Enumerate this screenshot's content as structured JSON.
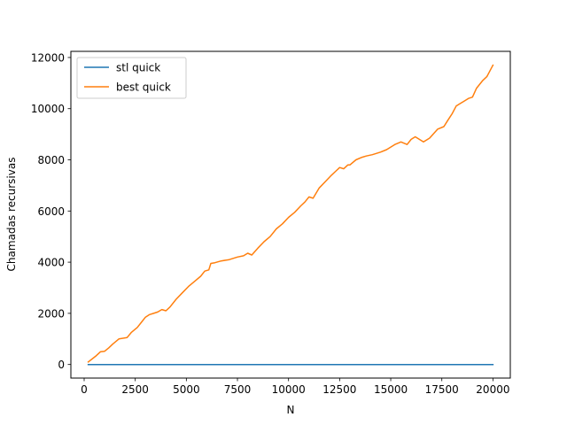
{
  "chart_data": {
    "type": "line",
    "title": "",
    "xlabel": "N",
    "ylabel": "Chamadas recursivas",
    "xlim": [
      -650,
      20850
    ],
    "ylim": [
      -530,
      12240
    ],
    "xticks": [
      {
        "value": 0,
        "label": "0"
      },
      {
        "value": 2500,
        "label": "2500"
      },
      {
        "value": 5000,
        "label": "5000"
      },
      {
        "value": 7500,
        "label": "7500"
      },
      {
        "value": 10000,
        "label": "10000"
      },
      {
        "value": 12500,
        "label": "12500"
      },
      {
        "value": 15000,
        "label": "15000"
      },
      {
        "value": 17500,
        "label": "17500"
      },
      {
        "value": 20000,
        "label": "20000"
      }
    ],
    "yticks": [
      {
        "value": 0,
        "label": "0"
      },
      {
        "value": 2000,
        "label": "2000"
      },
      {
        "value": 4000,
        "label": "4000"
      },
      {
        "value": 6000,
        "label": "6000"
      },
      {
        "value": 8000,
        "label": "8000"
      },
      {
        "value": 10000,
        "label": "10000"
      },
      {
        "value": 12000,
        "label": "12000"
      }
    ],
    "grid": false,
    "legend": "top-left",
    "series": [
      {
        "name": "stl quick",
        "color": "#1f77b4",
        "x": [
          200,
          20000
        ],
        "y": [
          0,
          0
        ]
      },
      {
        "name": "best quick",
        "color": "#ff7f0e",
        "x": [
          200,
          600,
          800,
          1000,
          1200,
          1400,
          1700,
          2100,
          2300,
          2600,
          2800,
          3000,
          3200,
          3400,
          3600,
          3800,
          4000,
          4200,
          4500,
          4800,
          5100,
          5400,
          5700,
          5900,
          6100,
          6200,
          6400,
          6700,
          7100,
          7500,
          7800,
          8000,
          8200,
          8500,
          8800,
          9100,
          9400,
          9700,
          10000,
          10300,
          10600,
          10800,
          11000,
          11200,
          11500,
          11800,
          12100,
          12300,
          12500,
          12700,
          12900,
          13000,
          13300,
          13600,
          13800,
          14100,
          14500,
          14800,
          15200,
          15500,
          15800,
          16000,
          16200,
          16600,
          16900,
          17300,
          17600,
          17800,
          18000,
          18200,
          18400,
          18600,
          18800,
          19000,
          19200,
          19500,
          19700,
          19800,
          20000
        ],
        "y": [
          100,
          350,
          500,
          520,
          650,
          800,
          1000,
          1050,
          1250,
          1450,
          1650,
          1850,
          1950,
          2000,
          2050,
          2150,
          2100,
          2250,
          2550,
          2800,
          3050,
          3250,
          3450,
          3650,
          3700,
          3950,
          3980,
          4050,
          4100,
          4200,
          4250,
          4350,
          4280,
          4550,
          4800,
          5000,
          5300,
          5500,
          5750,
          5950,
          6200,
          6350,
          6550,
          6500,
          6900,
          7150,
          7400,
          7550,
          7700,
          7650,
          7800,
          7800,
          8000,
          8100,
          8150,
          8200,
          8300,
          8400,
          8600,
          8700,
          8600,
          8800,
          8900,
          8700,
          8850,
          9200,
          9300,
          9550,
          9800,
          10100,
          10200,
          10300,
          10400,
          10450,
          10800,
          11100,
          11250,
          11400,
          11700
        ]
      }
    ]
  }
}
